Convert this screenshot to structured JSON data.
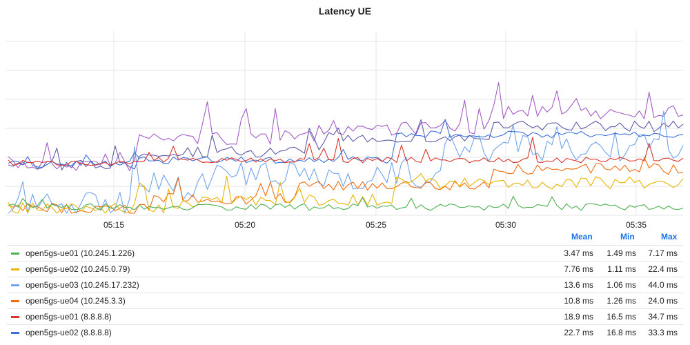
{
  "chart_data": {
    "type": "line",
    "title": "Latency UE",
    "x_ticks": [
      "05:15",
      "05:20",
      "05:25",
      "05:30",
      "05:35"
    ],
    "gridlines": "on",
    "legend_placement": "bottom",
    "legend_columns": [
      "Mean",
      "Min",
      "Max"
    ],
    "series": [
      {
        "name": "open5gs-ue01 (10.245.1.226)",
        "color": "#4caf50",
        "mean": "3.47 ms",
        "min": "1.49 ms",
        "max": "7.17 ms"
      },
      {
        "name": "open5gs-ue02 (10.245.0.79)",
        "color": "#e6b400",
        "mean": "7.76 ms",
        "min": "1.11 ms",
        "max": "22.4 ms"
      },
      {
        "name": "open5gs-ue03 (10.245.17.232)",
        "color": "#6fa3ea",
        "mean": "13.6 ms",
        "min": "1.06 ms",
        "max": "44.0 ms"
      },
      {
        "name": "open5gs-ue04 (10.245.3.3)",
        "color": "#f06d0c",
        "mean": "10.8 ms",
        "min": "1.26 ms",
        "max": "24.0 ms"
      },
      {
        "name": "open5gs-ue01 (8.8.8.8)",
        "color": "#d9342b",
        "mean": "18.9 ms",
        "min": "16.5 ms",
        "max": "34.7 ms"
      },
      {
        "name": "open5gs-ue02 (8.8.8.8)",
        "color": "#3b6fd4",
        "mean": "22.7 ms",
        "min": "16.8 ms",
        "max": "33.3 ms"
      }
    ],
    "extra_lines": [
      {
        "color": "#a35bc6"
      },
      {
        "color": "#5c5aa8"
      }
    ]
  }
}
